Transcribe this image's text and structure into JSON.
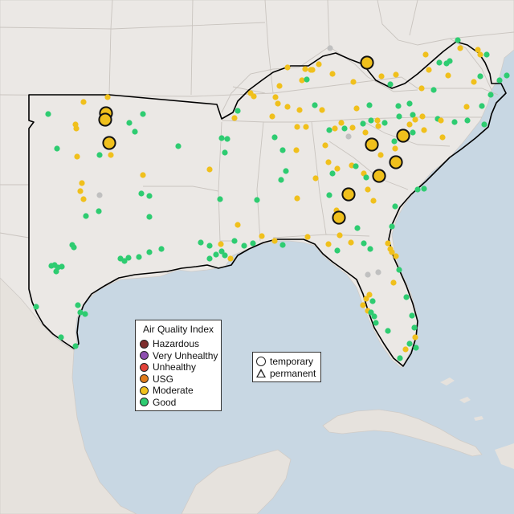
{
  "legend": {
    "title": "Air Quality Index",
    "categories": [
      {
        "label": "Hazardous",
        "color": "#7e2e2e"
      },
      {
        "label": "Very Unhealthy",
        "color": "#8e4fb0"
      },
      {
        "label": "Unhealthy",
        "color": "#e2423a"
      },
      {
        "label": "USG",
        "color": "#e07b1a"
      },
      {
        "label": "Moderate",
        "color": "#f0c01c"
      },
      {
        "label": "Good",
        "color": "#2ecc71"
      }
    ]
  },
  "site_type_legend": {
    "temporary": "temporary",
    "permanent": "permanent"
  },
  "colors": {
    "ocean": "#c8d7e3",
    "land": "#ebe8e5",
    "region_outline": "#000000",
    "no_data_site": "#c0c0c0"
  }
}
